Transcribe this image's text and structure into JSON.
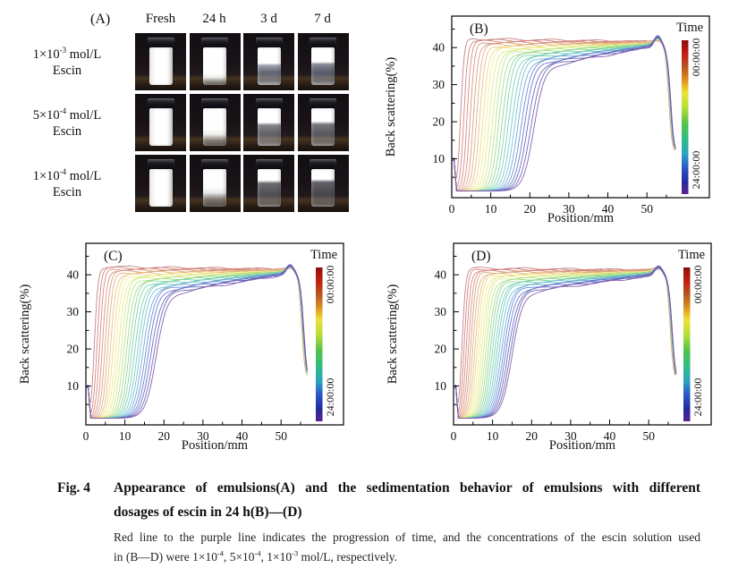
{
  "panel_a": {
    "label": "(A)",
    "columns": [
      "Fresh",
      "24 h",
      "3 d",
      "7 d"
    ],
    "rows": [
      {
        "conc_segments": [
          {
            "t": "1×10"
          },
          {
            "s": "-3"
          },
          {
            "t": " mol/L"
          }
        ],
        "substance": "Escin",
        "states": [
          "full",
          "haze-light",
          "sep-blue-1",
          "sep-blue-2"
        ]
      },
      {
        "conc_segments": [
          {
            "t": "5×10"
          },
          {
            "s": "-4"
          },
          {
            "t": " mol/L"
          }
        ],
        "substance": "Escin",
        "states": [
          "full",
          "haze-med",
          "sep-gray-1",
          "sep-gray-2"
        ]
      },
      {
        "conc_segments": [
          {
            "t": "1×10"
          },
          {
            "s": "-4"
          },
          {
            "t": " mol/L"
          }
        ],
        "substance": "Escin",
        "states": [
          "full",
          "haze-strong",
          "sep-clear-1",
          "sep-clear-2"
        ]
      }
    ]
  },
  "chart_common": {
    "xlabel": "Position/mm",
    "ylabel": "Back scattering(%)",
    "x_ticks": [
      0,
      10,
      20,
      30,
      40,
      50
    ],
    "x_minor_ticks": [
      5,
      15,
      25,
      35,
      45,
      55
    ],
    "y_ticks": [
      10,
      20,
      30,
      40
    ],
    "y_minor_ticks": [
      5,
      15,
      25,
      35,
      45
    ],
    "x_range": [
      0,
      66
    ],
    "y_range": [
      -0.5,
      48.5
    ],
    "n_curves": 24,
    "baseline": 1.3,
    "start_spike_y": 10.8,
    "drop_floor_y": 11,
    "converge_x": 50,
    "frame_color": "#000000",
    "colorbar": {
      "title": "Time",
      "top_label": "00:00:00",
      "bottom_label": "24:00:00"
    },
    "colormap_stops": [
      [
        0.0,
        "#8a0f0b"
      ],
      [
        0.09,
        "#c41f12"
      ],
      [
        0.17,
        "#b5521f"
      ],
      [
        0.26,
        "#dd9020"
      ],
      [
        0.34,
        "#eee239"
      ],
      [
        0.44,
        "#b4dd38"
      ],
      [
        0.54,
        "#55c24b"
      ],
      [
        0.64,
        "#2ebd85"
      ],
      [
        0.74,
        "#2da3bf"
      ],
      [
        0.83,
        "#2b55c8"
      ],
      [
        0.92,
        "#222a9d"
      ],
      [
        1.0,
        "#5a2090"
      ]
    ]
  },
  "chart_data": [
    {
      "type": "line",
      "panel": "(B)",
      "series_note": "24 back-scattering scans over 24 h; red = first scan (00:00:00), purple = last scan (24:00:00)",
      "rise_x_first": 2.3,
      "rise_x_last": 21.0,
      "plateau_first": 42.4,
      "plateau_last": 34.5,
      "converge_y": 40.0,
      "peak_x": 52.8,
      "peak_extra": 2.6,
      "drop_mid_x": 55.6,
      "drop_end_x": 57.0
    },
    {
      "type": "line",
      "panel": "(C)",
      "series_note": "24 back-scattering scans over 24 h; red = first scan (00:00:00), purple = last scan (24:00:00)",
      "rise_x_first": 2.2,
      "rise_x_last": 18.0,
      "plateau_first": 42.2,
      "plateau_last": 34.5,
      "converge_y": 39.9,
      "peak_x": 52.3,
      "peak_extra": 2.2,
      "drop_mid_x": 55.3,
      "drop_end_x": 56.6
    },
    {
      "type": "line",
      "panel": "(D)",
      "series_note": "24 back-scattering scans over 24 h; red = first scan (00:00:00), purple = last scan (24:00:00)",
      "rise_x_first": 2.2,
      "rise_x_last": 15.0,
      "plateau_first": 41.8,
      "plateau_last": 35.0,
      "converge_y": 39.7,
      "peak_x": 52.5,
      "peak_extra": 2.0,
      "drop_mid_x": 55.5,
      "drop_end_x": 56.8
    }
  ],
  "caption": {
    "fig_label": "Fig. 4",
    "title_lines": [
      "Appearance of emulsions(A) and the sedimentation behavior of emulsions with different",
      "dosages of escin in 24 h(B)—(D)"
    ],
    "note_lines": [
      [
        {
          "t": "Red line to the purple line indicates the progression of time, and the concentrations of the escin solution used"
        }
      ],
      [
        {
          "t": "in (B—D) were 1×10"
        },
        {
          "s": "-4"
        },
        {
          "t": ", 5×10"
        },
        {
          "s": "-4"
        },
        {
          "t": ", 1×10"
        },
        {
          "s": "-3"
        },
        {
          "t": " mol/L, respectively."
        }
      ]
    ]
  }
}
